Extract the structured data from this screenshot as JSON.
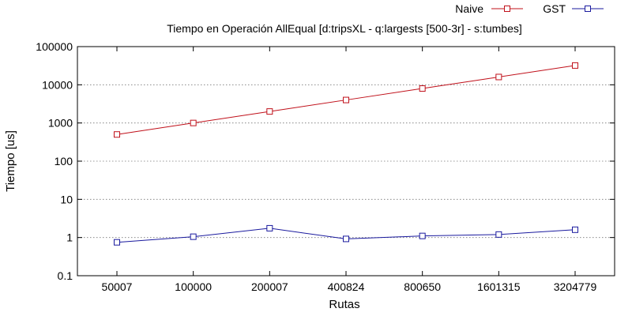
{
  "chart_data": {
    "type": "line",
    "title": "Tiempo en Operación AllEqual [d:tripsXL - q:largests [500-3r] - s:tumbes]",
    "xlabel": "Rutas",
    "ylabel": "Tiempo [us]",
    "categories": [
      "50007",
      "100000",
      "200007",
      "400824",
      "800650",
      "1601315",
      "3204779"
    ],
    "y_scale": "log",
    "ylim": [
      0.1,
      100000
    ],
    "y_ticks": [
      0.1,
      1,
      10,
      100,
      1000,
      10000,
      100000
    ],
    "y_tick_labels": [
      "0.1",
      "1",
      "10",
      "100",
      "1000",
      "10000",
      "100000"
    ],
    "grid": true,
    "legend_position": "top-right",
    "series": [
      {
        "name": "Naive",
        "color": "#c0101a",
        "marker": "square",
        "values": [
          500,
          1000,
          2000,
          4000,
          8000,
          16000,
          32000
        ]
      },
      {
        "name": "GST",
        "color": "#1a1a9e",
        "marker": "square",
        "values": [
          0.75,
          1.05,
          1.75,
          0.92,
          1.1,
          1.2,
          1.6
        ]
      }
    ]
  }
}
